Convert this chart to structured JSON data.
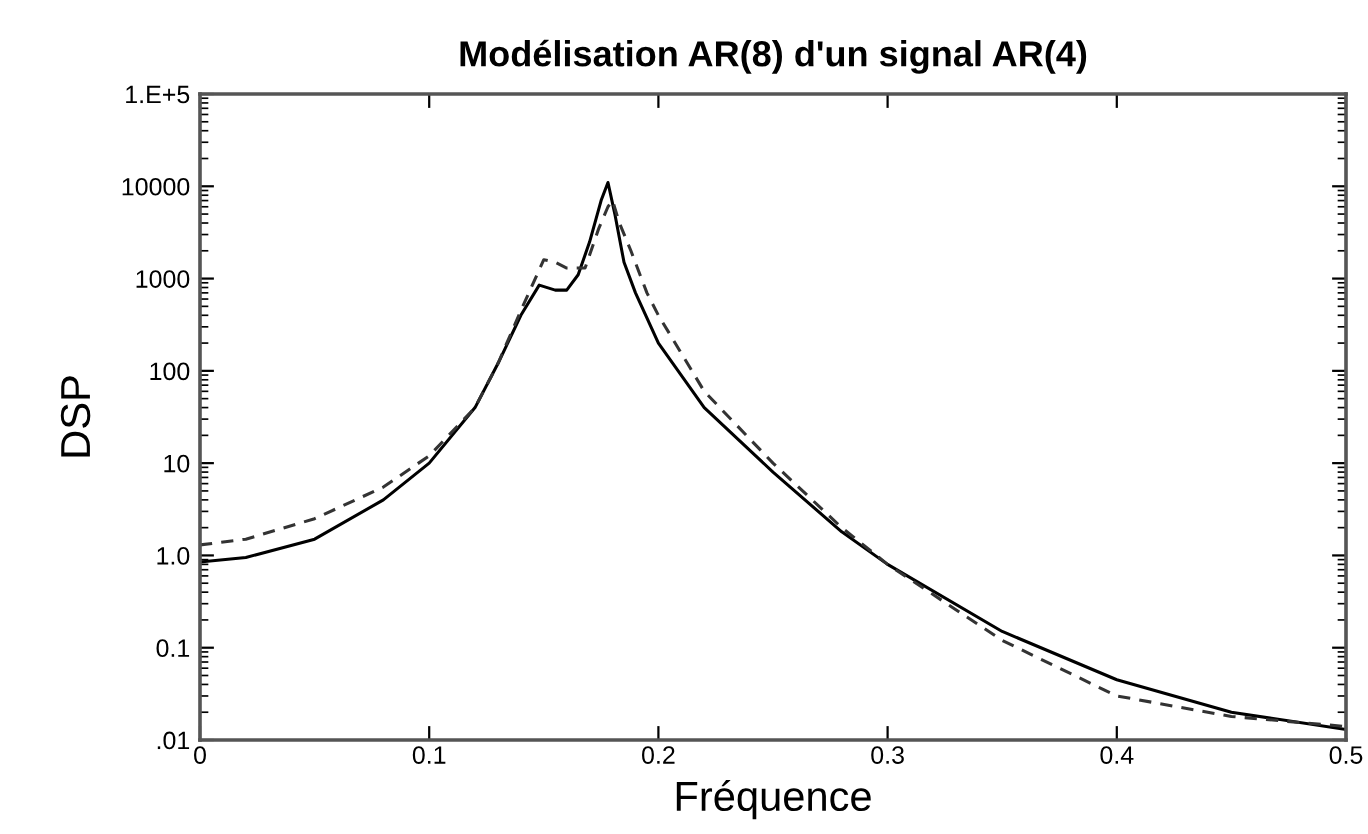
{
  "chart_data": {
    "type": "line",
    "title": "Modélisation AR(8) d'un signal AR(4)",
    "xlabel": "Fréquence",
    "ylabel": "DSP",
    "log": "y",
    "grid": false,
    "xlim": [
      0,
      0.5
    ],
    "xticks": [
      0,
      0.1,
      0.2,
      0.3,
      0.4,
      0.5
    ],
    "ylim": [
      0.01,
      100000
    ],
    "yticks": [
      {
        "value": 0.01,
        "label": ".01"
      },
      0.1,
      {
        "value": 1,
        "label": "1.0"
      },
      10,
      100,
      1000,
      10000,
      {
        "value": 100000,
        "label": "1.E+5"
      }
    ],
    "series": [
      {
        "color": "#000000",
        "line_style": "solid",
        "x": [
          0,
          0.02,
          0.05,
          0.08,
          0.1,
          0.12,
          0.13,
          0.14,
          0.148,
          0.155,
          0.16,
          0.165,
          0.17,
          0.175,
          0.178,
          0.181,
          0.185,
          0.19,
          0.2,
          0.22,
          0.25,
          0.28,
          0.3,
          0.35,
          0.4,
          0.45,
          0.5
        ],
        "values": [
          0.85,
          0.95,
          1.5,
          4,
          10,
          40,
          120,
          400,
          850,
          750,
          750,
          1100,
          2500,
          7000,
          11000,
          5000,
          1500,
          700,
          200,
          40,
          8,
          1.8,
          0.8,
          0.15,
          0.045,
          0.02,
          0.013
        ]
      },
      {
        "color": "#333333",
        "line_style": "dashed",
        "x": [
          0,
          0.02,
          0.05,
          0.08,
          0.1,
          0.12,
          0.13,
          0.14,
          0.15,
          0.155,
          0.16,
          0.168,
          0.174,
          0.178,
          0.18,
          0.183,
          0.188,
          0.195,
          0.2,
          0.22,
          0.25,
          0.28,
          0.3,
          0.35,
          0.4,
          0.45,
          0.5
        ],
        "values": [
          1.3,
          1.5,
          2.5,
          5.5,
          12,
          40,
          120,
          450,
          1600,
          1500,
          1300,
          1300,
          3500,
          6000,
          7000,
          4000,
          2000,
          700,
          400,
          60,
          10,
          2,
          0.8,
          0.12,
          0.03,
          0.018,
          0.014
        ]
      }
    ]
  }
}
